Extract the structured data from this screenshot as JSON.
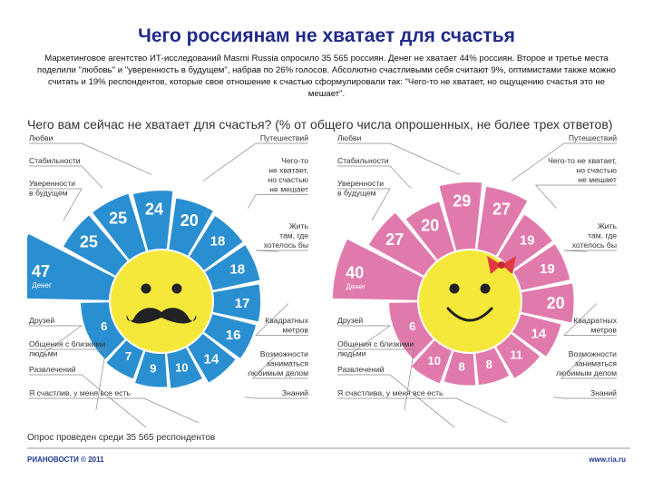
{
  "slide": {
    "title": "Чего россиянам не хватает для счастья",
    "body": "Маркетинговое агентство ИТ-исследований Masmi Russia опросило 35 565 россиян. Денег не хватает 44% россиян. Второе и третье места поделили \"любовь\" и \"уверенность в будущем\", набрав по 26% голосов. Абсолютно счастливыми себя считают 9%, оптимистами также можно считать и 19% респондентов, которые свое отношение к счастью сформулировали так: \"Чего-то не хватает, но ощущению счастья это не мешает\"."
  },
  "infographic": {
    "header": "Чего вам сейчас не хватает для счастья? (% от общего числа опрошенных, не более трех ответов)",
    "footer": "Опрос проведен среди 35 565 респондентов",
    "logo_text": "РИАНОВОСТИ © 2011",
    "site": "www.ria.ru",
    "money_label": "Денег"
  },
  "chart_data": [
    {
      "type": "radial",
      "group": "men",
      "color": "#2a8fd0",
      "categories": [
        {
          "name": "Денег",
          "value": 47,
          "label": "Денег"
        },
        {
          "name": "Уверенности в будущем",
          "value": 25,
          "label": "Уверенности\nв будущем"
        },
        {
          "name": "Стабильности",
          "value": 25,
          "label": "Стабильности"
        },
        {
          "name": "Любви",
          "value": 24,
          "label": "Любви"
        },
        {
          "name": "Путешествий",
          "value": 20,
          "label": "Путешествий"
        },
        {
          "name": "Чего-то не хватает, но счастью не мешает",
          "value": 18,
          "label": "Чего-то\nне хватает,\nно счастью\nне мешает"
        },
        {
          "name": "Жить там, где хотелось бы",
          "value": 18,
          "label": "Жить\nтам, где\nхотелось бы"
        },
        {
          "name": "Квадратных метров",
          "value": 17,
          "label": "Квадратных\nметров"
        },
        {
          "name": "Возможности заниматься любимым делом",
          "value": 16,
          "label": "Возможности\nзаниматься\nлюбимым делом"
        },
        {
          "name": "Знаний",
          "value": 14,
          "label": "Знаний"
        },
        {
          "name": "Я счастлив, у меня все есть",
          "value": 10,
          "label": "Я счастлив, у меня все есть"
        },
        {
          "name": "Развлечений",
          "value": 9,
          "label": "Развлечений"
        },
        {
          "name": "Общения с близкими людьми",
          "value": 7,
          "label": "Общения с близкими\nлюдьми"
        },
        {
          "name": "Друзей",
          "value": 6,
          "label": "Друзей"
        }
      ]
    },
    {
      "type": "radial",
      "group": "women",
      "color": "#e17aac",
      "categories": [
        {
          "name": "Денег",
          "value": 40,
          "label": "Денег"
        },
        {
          "name": "Уверенности в будущем",
          "value": 27,
          "label": "Уверенности\nв будущем"
        },
        {
          "name": "Стабильности",
          "value": 20,
          "label": "Стабильности"
        },
        {
          "name": "Любви",
          "value": 29,
          "label": "Любви"
        },
        {
          "name": "Путешествий",
          "value": 27,
          "label": "Путешествий"
        },
        {
          "name": "Чего-то не хватает, но счастью не мешает",
          "value": 19,
          "label": "Чего-то не хватает,\nно счастью\nне мешает"
        },
        {
          "name": "Жить там, где хотелось бы",
          "value": 19,
          "label": "Жить\nтам, где\nхотелось бы"
        },
        {
          "name": "Квадратных метров",
          "value": 20,
          "label": "Квадратных\nметров"
        },
        {
          "name": "Возможности заниматься любимым делом",
          "value": 14,
          "label": "Возможности\nзаниматься\nлюбимым делом"
        },
        {
          "name": "Знаний",
          "value": 11,
          "label": "Знаний"
        },
        {
          "name": "Я счастлива, у меня все есть",
          "value": 8,
          "label": "Я счастлива, у меня все есть"
        },
        {
          "name": "Развлечений",
          "value": 8,
          "label": "Развлечений"
        },
        {
          "name": "Общения с близкими людьми",
          "value": 10,
          "label": "Общения с близкими\nлюдьми"
        },
        {
          "name": "Друзей",
          "value": 6,
          "label": "Друзей"
        }
      ]
    }
  ]
}
